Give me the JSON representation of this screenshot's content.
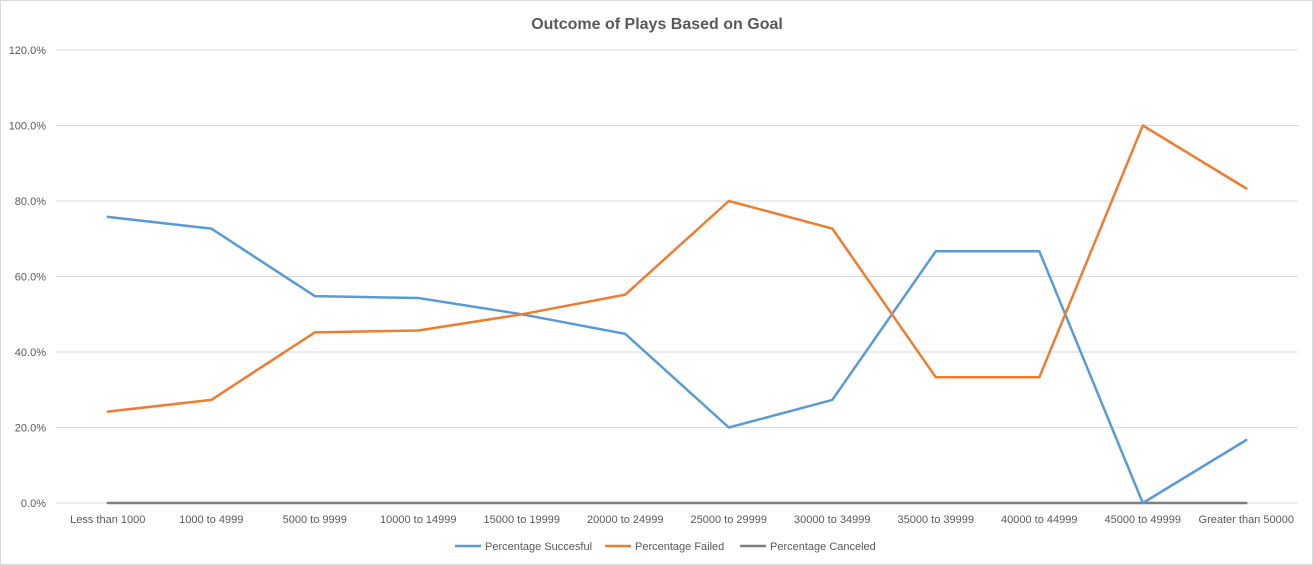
{
  "chart_data": {
    "type": "line",
    "title": "Outcome of Plays Based on Goal",
    "xlabel": "",
    "ylabel": "",
    "ylim": [
      0,
      120
    ],
    "y_ticks": [
      "0.0%",
      "20.0%",
      "40.0%",
      "60.0%",
      "80.0%",
      "100.0%",
      "120.0%"
    ],
    "y_tick_values": [
      0,
      20,
      40,
      60,
      80,
      100,
      120
    ],
    "categories": [
      "Less than 1000",
      "1000 to 4999",
      "5000 to 9999",
      "10000 to 14999",
      "15000 to 19999",
      "20000 to 24999",
      "25000 to 29999",
      "30000 to 34999",
      "35000 to 39999",
      "40000 to 44999",
      "45000 to 49999",
      "Greater than 50000"
    ],
    "series": [
      {
        "name": "Percentage Succesful",
        "color": "#5b9bd5",
        "values": [
          75.8,
          72.7,
          54.8,
          54.3,
          50.0,
          44.8,
          20.0,
          27.3,
          66.7,
          66.7,
          0.0,
          16.7
        ]
      },
      {
        "name": "Percentage Failed",
        "color": "#ed7d31",
        "values": [
          24.2,
          27.3,
          45.2,
          45.7,
          50.0,
          55.2,
          80.0,
          72.7,
          33.3,
          33.3,
          100.0,
          83.3
        ]
      },
      {
        "name": "Percentage Canceled",
        "color": "#7f7f7f",
        "values": [
          0,
          0,
          0,
          0,
          0,
          0,
          0,
          0,
          0,
          0,
          0,
          0
        ]
      }
    ],
    "grid": true,
    "legend": "bottom"
  }
}
